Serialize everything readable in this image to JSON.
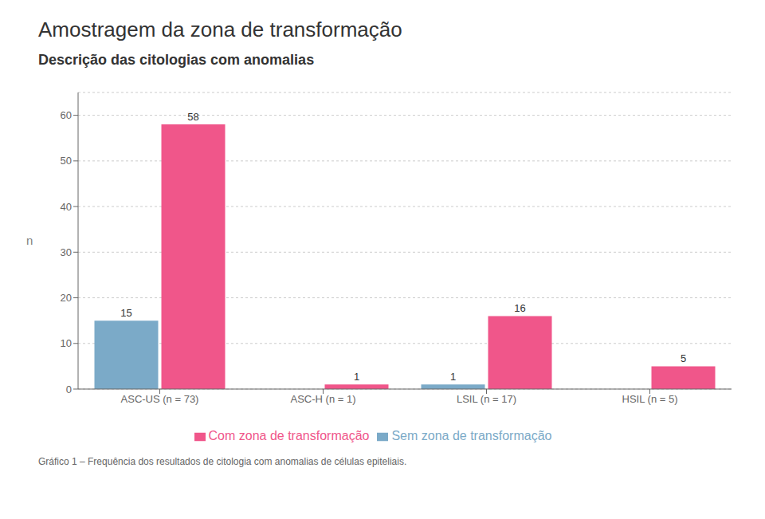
{
  "chart_data": {
    "type": "bar",
    "title": "Amostragem da zona de transformação",
    "subtitle": "Descrição das citologias com anomalias",
    "footnote": "Gráfico 1 – Frequência dos resultados de citologia com anomalias de células epiteliais.",
    "categories": [
      "ASC-US (n = 73)",
      "ASC-H (n = 1)",
      "LSIL (n = 17)",
      "HSIL (n = 5)"
    ],
    "series": [
      {
        "name": "Sem zona de transformação",
        "color": "#7baac8",
        "values": [
          15,
          0,
          1,
          0
        ]
      },
      {
        "name": "Com zona de transformação",
        "color": "#f0568a",
        "values": [
          58,
          1,
          16,
          5
        ]
      }
    ],
    "ylabel": "n",
    "ylim": [
      0,
      65
    ],
    "yticks": [
      0,
      10,
      20,
      30,
      40,
      50,
      60
    ],
    "grid": true,
    "legend": "bottom",
    "data_labels": true
  }
}
